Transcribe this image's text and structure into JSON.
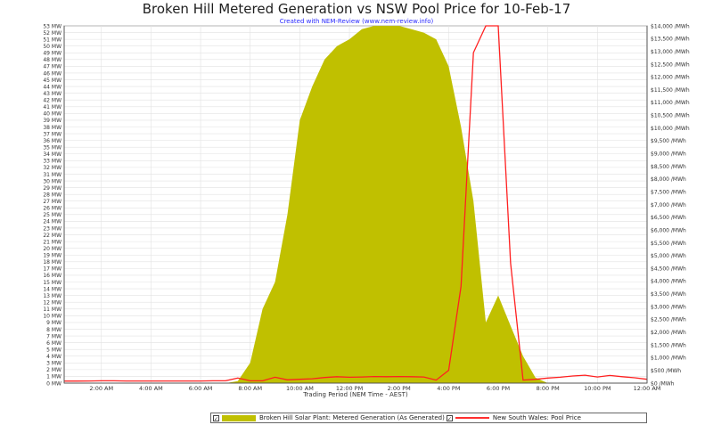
{
  "chart_data": {
    "type": "area+line",
    "title": "Broken Hill Metered Generation vs NSW Pool Price for 10-Feb-17",
    "subtitle": "Created with NEM-Review (www.nem-review.info)",
    "xlabel": "Trading Period (NEM Time - AEST)",
    "x_ticks": [
      "2:00 AM",
      "4:00 AM",
      "6:00 AM",
      "8:00 AM",
      "10:00 AM",
      "12:00 PM",
      "2:00 PM",
      "4:00 PM",
      "6:00 PM",
      "8:00 PM",
      "10:00 PM",
      "12:00 AM"
    ],
    "x_range_hours": [
      0.5,
      24
    ],
    "y_left": {
      "min": 0,
      "max": 53,
      "step": 1,
      "unit": "MW"
    },
    "y_right": {
      "min": 0,
      "max": 14000,
      "step": 500,
      "unit": "/MWh"
    },
    "grid": true,
    "legend_placement": "bottom",
    "series": [
      {
        "name": "Broken Hill Solar Plant: Metered Generation (As Generated)",
        "axis": "left",
        "render": "area",
        "color": "#c0c000",
        "x": [
          0.5,
          1,
          1.5,
          2,
          2.5,
          3,
          3.5,
          4,
          4.5,
          5,
          5.5,
          6,
          6.5,
          7,
          7.5,
          8,
          8.5,
          9,
          9.5,
          10,
          10.5,
          11,
          11.5,
          12,
          12.5,
          13,
          13.5,
          14,
          14.5,
          15,
          15.5,
          16,
          16.5,
          17,
          17.5,
          18,
          18.5,
          19,
          19.5,
          20,
          20.5,
          21,
          21.5,
          22,
          22.5,
          23,
          23.5,
          24
        ],
        "values": [
          0,
          0,
          0,
          0,
          0,
          0,
          0,
          0,
          0,
          0,
          0,
          0,
          0,
          0,
          0.3,
          3,
          11,
          15,
          25,
          39,
          44,
          48,
          50,
          51,
          52.5,
          53,
          53,
          53,
          52.5,
          52,
          51,
          47,
          38,
          27,
          9,
          13,
          8.5,
          4,
          0.8,
          0,
          0,
          0,
          0,
          0,
          0,
          0,
          0,
          0
        ]
      },
      {
        "name": "New South Wales: Pool Price",
        "axis": "right",
        "render": "line",
        "color": "#ff2020",
        "x": [
          0.5,
          1,
          1.5,
          2,
          2.5,
          3,
          3.5,
          4,
          4.5,
          5,
          5.5,
          6,
          6.5,
          7,
          7.5,
          8,
          8.5,
          9,
          9.5,
          10,
          10.5,
          11,
          11.5,
          12,
          12.5,
          13,
          13.5,
          14,
          14.5,
          15,
          15.5,
          16,
          16.5,
          17,
          17.5,
          18,
          18.5,
          19,
          19.5,
          20,
          20.5,
          21,
          21.5,
          22,
          22.5,
          23,
          23.5,
          24
        ],
        "values": [
          80,
          80,
          85,
          90,
          90,
          85,
          85,
          85,
          85,
          85,
          85,
          85,
          90,
          90,
          200,
          90,
          90,
          230,
          130,
          150,
          170,
          220,
          250,
          230,
          240,
          260,
          250,
          260,
          250,
          240,
          120,
          500,
          3800,
          12950,
          14000,
          14000,
          4700,
          120,
          150,
          200,
          230,
          280,
          310,
          240,
          300,
          250,
          210,
          150
        ]
      }
    ]
  },
  "legend": {
    "item1_label": "Broken Hill Solar Plant: Metered Generation (As Generated)",
    "item2_label": "New South Wales: Pool Price",
    "check_mark": "✓"
  }
}
